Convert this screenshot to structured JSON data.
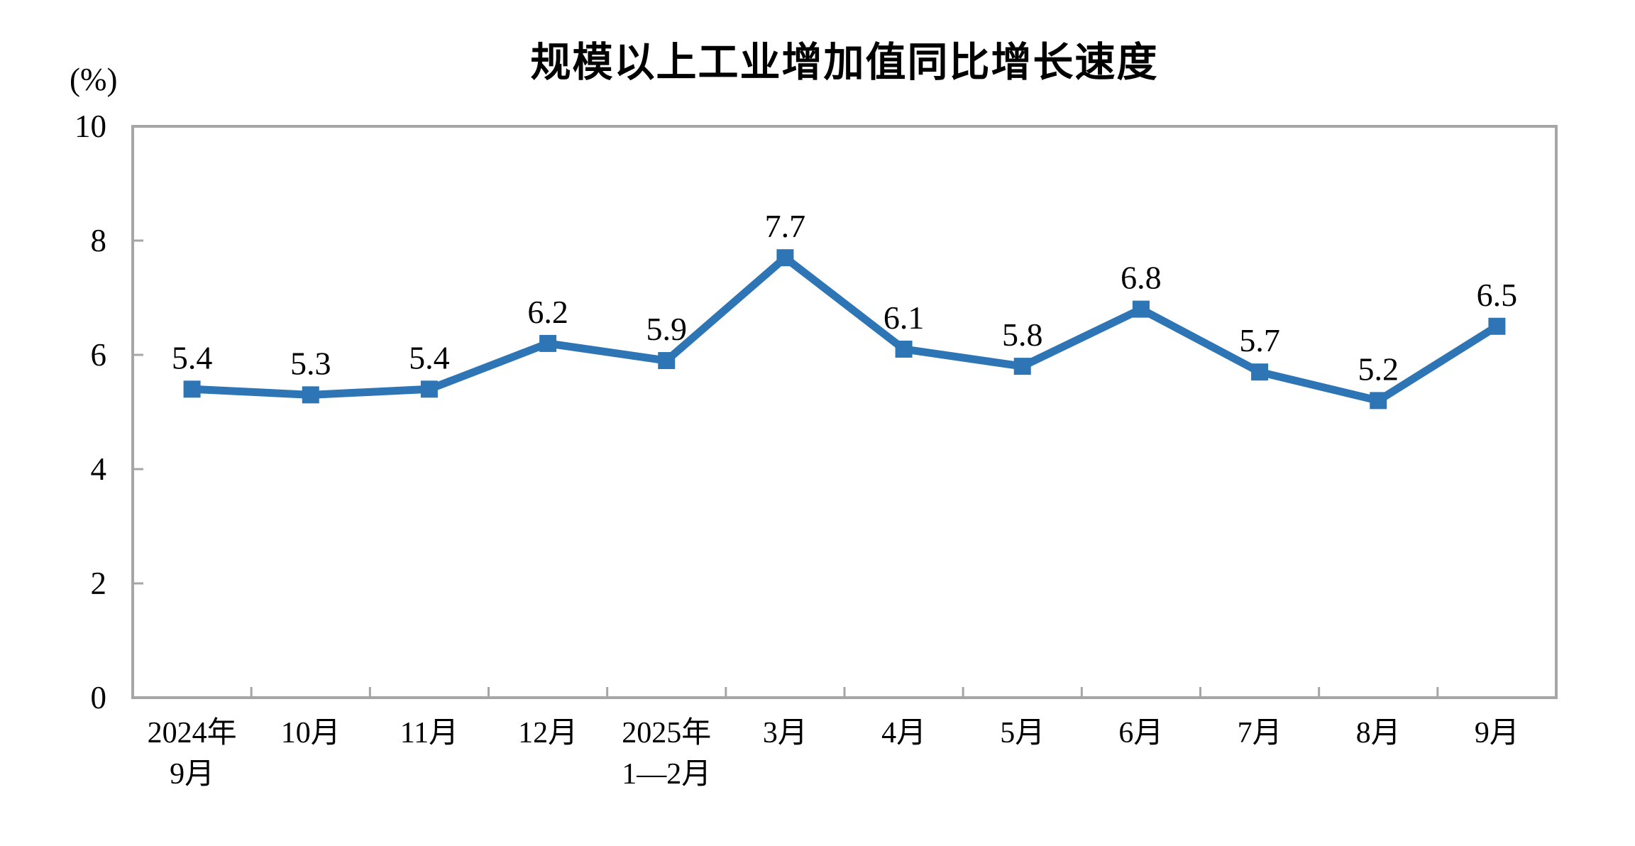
{
  "title": "规模以上工业增加值同比增长速度",
  "y_axis_unit_label": "(%)",
  "chart_data": {
    "type": "line",
    "title": "规模以上工业增加值同比增长速度",
    "categories": [
      "2024年\n9月",
      "10月",
      "11月",
      "12月",
      "2025年\n1—2月",
      "3月",
      "4月",
      "5月",
      "6月",
      "7月",
      "8月",
      "9月"
    ],
    "values": [
      5.4,
      5.3,
      5.4,
      6.2,
      5.9,
      7.7,
      6.1,
      5.8,
      6.8,
      5.7,
      5.2,
      6.5
    ],
    "data_labels": [
      "5.4",
      "5.3",
      "5.4",
      "6.2",
      "5.9",
      "7.7",
      "6.1",
      "5.8",
      "6.8",
      "5.7",
      "5.2",
      "6.5"
    ],
    "xlabel": "",
    "ylabel": "(%)",
    "ylim": [
      0,
      10
    ],
    "y_ticks": [
      0,
      2,
      4,
      6,
      8,
      10
    ],
    "grid": "off",
    "legend": "none",
    "marker": "square",
    "line_color": "#2E75B6",
    "axis_color": "#A6A6A6",
    "text_color": "#000000"
  }
}
